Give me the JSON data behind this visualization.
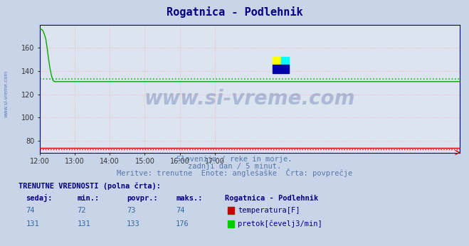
{
  "title": "Rogatnica - Podlehnik",
  "title_color": "#000080",
  "title_fontsize": 11,
  "bg_color": "#c8d4e8",
  "plot_bg_color": "#dce4f0",
  "xlabel_text1": "Slovenija / reke in morje.",
  "xlabel_text2": "zadnji dan / 5 minut.",
  "xlabel_text3": "Meritve: trenutne  Enote: anglešaške  Črta: povprečje",
  "xmin": 0,
  "xmax": 288,
  "ymin": 70,
  "ymax": 180,
  "yticks": [
    80,
    100,
    120,
    140,
    160
  ],
  "xtick_labels": [
    "12:00",
    "13:00",
    "14:00",
    "15:00",
    "16:00",
    "17:00"
  ],
  "grid_color": "#ffaaaa",
  "grid_style": ":",
  "avg_temp": 73,
  "avg_flow": 133,
  "temp_color": "#cc0000",
  "flow_color": "#00aa00",
  "avg_line_color_temp": "#cc0000",
  "avg_line_color_flow": "#00cc00",
  "watermark_text": "www.si-vreme.com",
  "watermark_color": "#1a3a8a",
  "watermark_alpha": 0.25,
  "side_label": "www.si-vreme.com",
  "table_header": "TRENUTNE VREDNOSTI (polna črta):",
  "table_cols": [
    "sedaj:",
    "min.:",
    "povpr.:",
    "maks.:"
  ],
  "table_data": [
    [
      74,
      72,
      73,
      74
    ],
    [
      131,
      131,
      133,
      176
    ]
  ],
  "legend_labels": [
    "temperatura[F]",
    "pretok[čevelj3/min]"
  ],
  "legend_colors": [
    "#cc0000",
    "#00cc00"
  ],
  "station_label": "Rogatnica - Podlehnik",
  "border_color": "#000080",
  "subtitle_color": "#5577aa"
}
